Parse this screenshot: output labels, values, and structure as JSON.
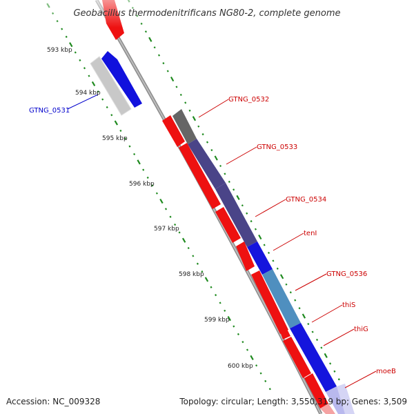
{
  "title": "Geobacillus thermodenitrificans NG80-2, complete genome",
  "footer": {
    "accession": "Accession: NC_009328",
    "topology": "Topology: circular; Length: 3,550,319 bp; Genes: 3,509"
  },
  "colors": {
    "backbone": "#8c8c8c",
    "tick": "#1f8a1f",
    "label_red": "#cc0000",
    "label_blue": "#0000cc"
  },
  "kbp_ticks": [
    "593 kbp",
    "594 kbp",
    "595 kbp",
    "596 kbp",
    "597 kbp",
    "598 kbp",
    "599 kbp",
    "600 kbp"
  ],
  "genes": [
    {
      "id": "gene-top-partial",
      "label": "",
      "strand": "outer",
      "color": "#ee1111"
    },
    {
      "id": "gene-grey-pale",
      "label": "",
      "strand": "inner",
      "color": "#c8c8c8"
    },
    {
      "id": "GTNG_0531",
      "label": "GTNG_0531",
      "strand": "outer",
      "color": "#1111dd",
      "label_color": "#0000cc"
    },
    {
      "id": "GTNG_0532",
      "label": "GTNG_0532",
      "strand": "outer",
      "color": "#707070",
      "label_color": "#cc0000"
    },
    {
      "id": "GTNG_0533",
      "label": "GTNG_0533",
      "strand": "outer",
      "color": "#4a4488",
      "label_color": "#cc0000"
    },
    {
      "id": "GTNG_0534",
      "label": "GTNG_0534",
      "strand": "outer",
      "color": "#4a4488",
      "label_color": "#cc0000"
    },
    {
      "id": "tenI",
      "label": "tenI",
      "strand": "outer",
      "color": "#1515dd",
      "label_color": "#cc0000"
    },
    {
      "id": "GTNG_0536",
      "label": "GTNG_0536",
      "strand": "outer",
      "color": "#4f8fbf",
      "label_color": "#cc0000"
    },
    {
      "id": "thiS",
      "label": "thiS",
      "strand": "outer",
      "color": "#1515dd",
      "label_color": "#cc0000"
    },
    {
      "id": "thiG",
      "label": "thiG",
      "strand": "outer",
      "color": "#1515dd",
      "label_color": "#cc0000"
    },
    {
      "id": "moeB",
      "label": "moeB",
      "strand": "outer",
      "color": "#ee1111",
      "label_color": "#cc0000"
    }
  ]
}
